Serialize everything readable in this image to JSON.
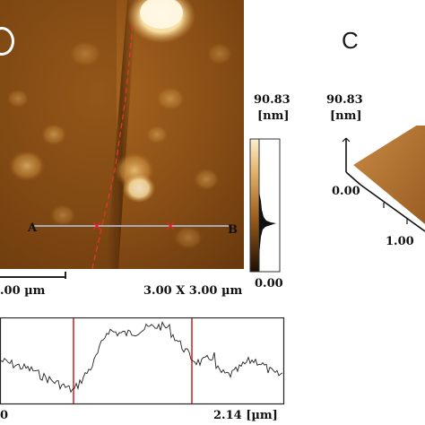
{
  "afm_image": {
    "point_a": "A",
    "point_b": "B",
    "scale_bar_label": ".00 µm",
    "scan_size": "3.00 X 3.00 µm"
  },
  "color_scale": {
    "max": "90.83",
    "unit": "[nm]",
    "min": "0.00"
  },
  "panel_c": {
    "letter": "C",
    "z_max": "90.83",
    "z_unit": "[nm]",
    "z_min": "0.00",
    "x_tick": "1.00"
  },
  "profile": {
    "x_start": "0",
    "x_end": "2.14 [µm]",
    "trace_color": "#222222",
    "marker_color": "#d42a2a"
  },
  "colors": {
    "afm_dark": "#3a1f06",
    "afm_mid": "#9a5c1c",
    "afm_light": "#f2d9a0",
    "surface_3d": "#b0722d"
  }
}
